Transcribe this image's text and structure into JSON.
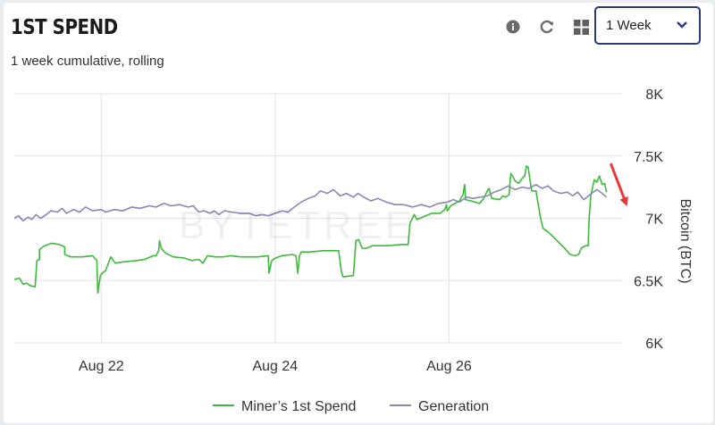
{
  "header": {
    "title": "1ST SPEND",
    "subtitle": "1 week cumulative, rolling",
    "icons": [
      "info-icon",
      "refresh-icon",
      "grid-icon"
    ],
    "range_select": {
      "value": "1 Week"
    }
  },
  "watermark": "BYTETREE",
  "colors": {
    "miner": "#3dba3d",
    "generation": "#8a86b8",
    "arrow": "#e53935",
    "select_border": "#2c3a7a"
  },
  "chart_data": {
    "type": "line",
    "title": "",
    "ylabel": "Bitcoin (BTC)",
    "ylim": [
      6000,
      8000
    ],
    "yticks": [
      6000,
      6500,
      7000,
      7500,
      8000
    ],
    "ytick_labels": [
      "6K",
      "6.5K",
      "7K",
      "7.5K",
      "8K"
    ],
    "xlim": [
      0,
      7
    ],
    "xticks": [
      1,
      3,
      5
    ],
    "xtick_labels": [
      "Aug 22",
      "Aug 24",
      "Aug 26"
    ],
    "grid": true,
    "legend_position": "bottom",
    "series": [
      {
        "name": "Miner’s 1st Spend",
        "color": "#3dba3d",
        "points": [
          [
            0.0,
            6510
          ],
          [
            0.06,
            6520
          ],
          [
            0.1,
            6470
          ],
          [
            0.14,
            6480
          ],
          [
            0.18,
            6460
          ],
          [
            0.24,
            6450
          ],
          [
            0.26,
            6660
          ],
          [
            0.29,
            6670
          ],
          [
            0.29,
            6750
          ],
          [
            0.35,
            6780
          ],
          [
            0.43,
            6800
          ],
          [
            0.52,
            6790
          ],
          [
            0.58,
            6770
          ],
          [
            0.58,
            6710
          ],
          [
            0.65,
            6690
          ],
          [
            0.78,
            6690
          ],
          [
            0.9,
            6700
          ],
          [
            0.95,
            6660
          ],
          [
            0.96,
            6400
          ],
          [
            0.99,
            6540
          ],
          [
            1.01,
            6560
          ],
          [
            1.05,
            6580
          ],
          [
            1.11,
            6690
          ],
          [
            1.16,
            6640
          ],
          [
            1.25,
            6650
          ],
          [
            1.4,
            6660
          ],
          [
            1.5,
            6670
          ],
          [
            1.6,
            6700
          ],
          [
            1.63,
            6700
          ],
          [
            1.66,
            6740
          ],
          [
            1.67,
            6820
          ],
          [
            1.69,
            6760
          ],
          [
            1.74,
            6720
          ],
          [
            1.83,
            6690
          ],
          [
            1.96,
            6680
          ],
          [
            2.04,
            6660
          ],
          [
            2.12,
            6670
          ],
          [
            2.17,
            6640
          ],
          [
            2.22,
            6700
          ],
          [
            2.31,
            6690
          ],
          [
            2.4,
            6690
          ],
          [
            2.49,
            6700
          ],
          [
            2.6,
            6690
          ],
          [
            2.8,
            6690
          ],
          [
            2.92,
            6700
          ],
          [
            2.93,
            6560
          ],
          [
            2.96,
            6660
          ],
          [
            3.0,
            6680
          ],
          [
            3.08,
            6700
          ],
          [
            3.2,
            6710
          ],
          [
            3.24,
            6700
          ],
          [
            3.26,
            6560
          ],
          [
            3.28,
            6700
          ],
          [
            3.3,
            6730
          ],
          [
            3.4,
            6730
          ],
          [
            3.55,
            6740
          ],
          [
            3.73,
            6740
          ],
          [
            3.76,
            6580
          ],
          [
            3.78,
            6530
          ],
          [
            3.9,
            6540
          ],
          [
            3.93,
            6820
          ],
          [
            3.96,
            6830
          ],
          [
            4.0,
            6760
          ],
          [
            4.05,
            6760
          ],
          [
            4.12,
            6780
          ],
          [
            4.3,
            6780
          ],
          [
            4.45,
            6790
          ],
          [
            4.53,
            6790
          ],
          [
            4.55,
            6960
          ],
          [
            4.6,
            7030
          ],
          [
            4.63,
            6990
          ],
          [
            4.8,
            7040
          ],
          [
            4.9,
            7040
          ],
          [
            4.95,
            7070
          ],
          [
            4.97,
            7110
          ],
          [
            4.98,
            7060
          ],
          [
            5.02,
            7100
          ],
          [
            5.12,
            7140
          ],
          [
            5.16,
            7190
          ],
          [
            5.18,
            7270
          ],
          [
            5.19,
            7150
          ],
          [
            5.25,
            7140
          ],
          [
            5.35,
            7120
          ],
          [
            5.4,
            7160
          ],
          [
            5.44,
            7220
          ],
          [
            5.46,
            7240
          ],
          [
            5.49,
            7160
          ],
          [
            5.58,
            7150
          ],
          [
            5.62,
            7180
          ],
          [
            5.65,
            7170
          ],
          [
            5.69,
            7190
          ],
          [
            5.71,
            7360
          ],
          [
            5.73,
            7340
          ],
          [
            5.76,
            7300
          ],
          [
            5.8,
            7280
          ],
          [
            5.84,
            7320
          ],
          [
            5.87,
            7340
          ],
          [
            5.89,
            7420
          ],
          [
            5.91,
            7410
          ],
          [
            5.93,
            7310
          ],
          [
            5.95,
            7220
          ],
          [
            6.0,
            7220
          ],
          [
            6.05,
            7010
          ],
          [
            6.08,
            6920
          ],
          [
            6.14,
            6890
          ],
          [
            6.2,
            6850
          ],
          [
            6.27,
            6800
          ],
          [
            6.33,
            6760
          ],
          [
            6.39,
            6710
          ],
          [
            6.45,
            6700
          ],
          [
            6.49,
            6710
          ],
          [
            6.52,
            6760
          ],
          [
            6.57,
            6780
          ],
          [
            6.6,
            6780
          ],
          [
            6.61,
            6990
          ],
          [
            6.63,
            7180
          ],
          [
            6.67,
            7310
          ],
          [
            6.7,
            7290
          ],
          [
            6.73,
            7340
          ],
          [
            6.76,
            7270
          ],
          [
            6.79,
            7280
          ],
          [
            6.81,
            7210
          ]
        ]
      },
      {
        "name": "Generation",
        "color": "#8a86b8",
        "points": [
          [
            0.0,
            7000
          ],
          [
            0.05,
            7020
          ],
          [
            0.1,
            6980
          ],
          [
            0.16,
            7010
          ],
          [
            0.2,
            6990
          ],
          [
            0.25,
            7030
          ],
          [
            0.3,
            7000
          ],
          [
            0.35,
            7020
          ],
          [
            0.42,
            7060
          ],
          [
            0.5,
            7050
          ],
          [
            0.55,
            7080
          ],
          [
            0.6,
            7040
          ],
          [
            0.68,
            7070
          ],
          [
            0.75,
            7050
          ],
          [
            0.82,
            7090
          ],
          [
            0.9,
            7060
          ],
          [
            1.0,
            7070
          ],
          [
            1.05,
            7050
          ],
          [
            1.15,
            7070
          ],
          [
            1.25,
            7060
          ],
          [
            1.35,
            7090
          ],
          [
            1.45,
            7080
          ],
          [
            1.55,
            7100
          ],
          [
            1.63,
            7090
          ],
          [
            1.72,
            7120
          ],
          [
            1.8,
            7100
          ],
          [
            1.9,
            7110
          ],
          [
            2.0,
            7090
          ],
          [
            2.06,
            7100
          ],
          [
            2.12,
            7050
          ],
          [
            2.18,
            7060
          ],
          [
            2.25,
            7040
          ],
          [
            2.3,
            7060
          ],
          [
            2.35,
            7030
          ],
          [
            2.42,
            7060
          ],
          [
            2.5,
            7050
          ],
          [
            2.6,
            7040
          ],
          [
            2.7,
            7040
          ],
          [
            2.78,
            7020
          ],
          [
            2.85,
            7030
          ],
          [
            2.92,
            7020
          ],
          [
            3.0,
            7040
          ],
          [
            3.08,
            7060
          ],
          [
            3.15,
            7050
          ],
          [
            3.22,
            7090
          ],
          [
            3.3,
            7130
          ],
          [
            3.38,
            7160
          ],
          [
            3.46,
            7180
          ],
          [
            3.52,
            7220
          ],
          [
            3.6,
            7200
          ],
          [
            3.67,
            7230
          ],
          [
            3.75,
            7180
          ],
          [
            3.82,
            7200
          ],
          [
            3.9,
            7170
          ],
          [
            3.95,
            7200
          ],
          [
            4.02,
            7170
          ],
          [
            4.1,
            7140
          ],
          [
            4.18,
            7160
          ],
          [
            4.28,
            7130
          ],
          [
            4.38,
            7110
          ],
          [
            4.48,
            7110
          ],
          [
            4.58,
            7090
          ],
          [
            4.68,
            7110
          ],
          [
            4.78,
            7090
          ],
          [
            4.88,
            7120
          ],
          [
            4.98,
            7130
          ],
          [
            5.05,
            7150
          ],
          [
            5.12,
            7130
          ],
          [
            5.2,
            7170
          ],
          [
            5.28,
            7160
          ],
          [
            5.36,
            7170
          ],
          [
            5.44,
            7180
          ],
          [
            5.52,
            7210
          ],
          [
            5.6,
            7230
          ],
          [
            5.68,
            7260
          ],
          [
            5.76,
            7230
          ],
          [
            5.84,
            7250
          ],
          [
            5.92,
            7240
          ],
          [
            6.0,
            7270
          ],
          [
            6.07,
            7240
          ],
          [
            6.14,
            7260
          ],
          [
            6.2,
            7220
          ],
          [
            6.28,
            7200
          ],
          [
            6.36,
            7210
          ],
          [
            6.42,
            7180
          ],
          [
            6.48,
            7210
          ],
          [
            6.55,
            7150
          ],
          [
            6.62,
            7190
          ],
          [
            6.7,
            7230
          ],
          [
            6.76,
            7200
          ],
          [
            6.81,
            7170
          ]
        ]
      }
    ],
    "annotations": [
      {
        "type": "arrow",
        "color": "#e53935",
        "from": [
          6.86,
          7440
        ],
        "to": [
          7.03,
          7130
        ]
      }
    ]
  }
}
